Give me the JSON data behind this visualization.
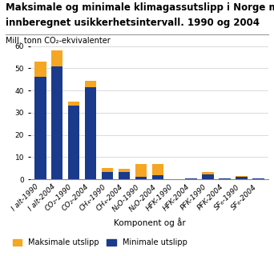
{
  "title_line1": "Maksimale og minimale klimagassutslipp i Norge med",
  "title_line2": "innberegnet usikkerhetsintervall. 1990 og 2004",
  "ylabel": "Mill. tonn CO₂-ekvivalenter",
  "xlabel": "Komponent og år",
  "categories": [
    "I alt-1990",
    "I alt-2004",
    "CO₂-1990",
    "CO₂-2004",
    "CH₄-1990",
    "CH₄-2004",
    "N₂O-1990",
    "N₂O-2004",
    "HFK-1990",
    "HFK-2004",
    "PFK-1990",
    "PFK-2004",
    "SF₆-1990",
    "SF₆-2004"
  ],
  "min_values": [
    46.0,
    51.0,
    33.0,
    41.5,
    3.2,
    3.2,
    1.2,
    1.8,
    0.05,
    0.4,
    2.2,
    0.4,
    1.2,
    0.2
  ],
  "max_extra": [
    7.0,
    7.0,
    2.0,
    3.0,
    1.8,
    1.6,
    5.8,
    5.0,
    0.05,
    0.1,
    1.0,
    0.1,
    0.3,
    0.05
  ],
  "color_min": "#1a3a8c",
  "color_max": "#f5a623",
  "ylim": [
    0,
    60
  ],
  "yticks": [
    0,
    10,
    20,
    30,
    40,
    50,
    60
  ],
  "legend_max": "Maksimale utslipp",
  "legend_min": "Minimale utslipp",
  "title_fontsize": 8.5,
  "ylabel_fontsize": 7,
  "xlabel_fontsize": 7.5,
  "tick_fontsize": 6.5,
  "legend_fontsize": 7,
  "background_color": "#ffffff",
  "grid_color": "#cccccc"
}
